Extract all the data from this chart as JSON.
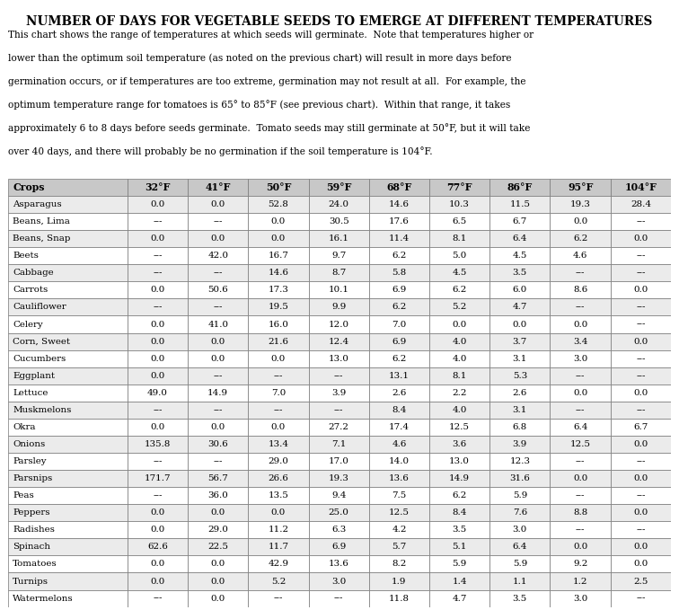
{
  "title": "Number of Days for Vegetable Seeds to Emerge at Different Temperatures",
  "subtitle_lines": [
    "This chart shows the range of temperatures at which seeds will germinate.  Note that temperatures higher or",
    "lower than the optimum soil temperature (as noted on the previous chart) will result in more days before",
    "germination occurs, or if temperatures are too extreme, germination may not result at all.  For example, the",
    "optimum temperature range for tomatoes is 65° to 85°F (see previous chart).  Within that range, it takes",
    "approximately 6 to 8 days before seeds germinate.  Tomato seeds may still germinate at 50°F, but it will take",
    "over 40 days, and there will probably be no germination if the soil temperature is 104°F."
  ],
  "columns": [
    "Crops",
    "32°F",
    "41°F",
    "50°F",
    "59°F",
    "68°F",
    "77°F",
    "86°F",
    "95°F",
    "104°F"
  ],
  "rows": [
    [
      "Asparagus",
      "0.0",
      "0.0",
      "52.8",
      "24.0",
      "14.6",
      "10.3",
      "11.5",
      "19.3",
      "28.4"
    ],
    [
      "Beans, Lima",
      "---",
      "---",
      "0.0",
      "30.5",
      "17.6",
      "6.5",
      "6.7",
      "0.0",
      "---"
    ],
    [
      "Beans, Snap",
      "0.0",
      "0.0",
      "0.0",
      "16.1",
      "11.4",
      "8.1",
      "6.4",
      "6.2",
      "0.0"
    ],
    [
      "Beets",
      "---",
      "42.0",
      "16.7",
      "9.7",
      "6.2",
      "5.0",
      "4.5",
      "4.6",
      "---"
    ],
    [
      "Cabbage",
      "---",
      "---",
      "14.6",
      "8.7",
      "5.8",
      "4.5",
      "3.5",
      "---",
      "---"
    ],
    [
      "Carrots",
      "0.0",
      "50.6",
      "17.3",
      "10.1",
      "6.9",
      "6.2",
      "6.0",
      "8.6",
      "0.0"
    ],
    [
      "Cauliflower",
      "---",
      "---",
      "19.5",
      "9.9",
      "6.2",
      "5.2",
      "4.7",
      "---",
      "---"
    ],
    [
      "Celery",
      "0.0",
      "41.0",
      "16.0",
      "12.0",
      "7.0",
      "0.0",
      "0.0",
      "0.0",
      "---"
    ],
    [
      "Corn, Sweet",
      "0.0",
      "0.0",
      "21.6",
      "12.4",
      "6.9",
      "4.0",
      "3.7",
      "3.4",
      "0.0"
    ],
    [
      "Cucumbers",
      "0.0",
      "0.0",
      "0.0",
      "13.0",
      "6.2",
      "4.0",
      "3.1",
      "3.0",
      "---"
    ],
    [
      "Eggplant",
      "0.0",
      "---",
      "---",
      "---",
      "13.1",
      "8.1",
      "5.3",
      "---",
      "---"
    ],
    [
      "Lettuce",
      "49.0",
      "14.9",
      "7.0",
      "3.9",
      "2.6",
      "2.2",
      "2.6",
      "0.0",
      "0.0"
    ],
    [
      "Muskmelons",
      "---",
      "---",
      "---",
      "---",
      "8.4",
      "4.0",
      "3.1",
      "---",
      "---"
    ],
    [
      "Okra",
      "0.0",
      "0.0",
      "0.0",
      "27.2",
      "17.4",
      "12.5",
      "6.8",
      "6.4",
      "6.7"
    ],
    [
      "Onions",
      "135.8",
      "30.6",
      "13.4",
      "7.1",
      "4.6",
      "3.6",
      "3.9",
      "12.5",
      "0.0"
    ],
    [
      "Parsley",
      "---",
      "---",
      "29.0",
      "17.0",
      "14.0",
      "13.0",
      "12.3",
      "---",
      "---"
    ],
    [
      "Parsnips",
      "171.7",
      "56.7",
      "26.6",
      "19.3",
      "13.6",
      "14.9",
      "31.6",
      "0.0",
      "0.0"
    ],
    [
      "Peas",
      "---",
      "36.0",
      "13.5",
      "9.4",
      "7.5",
      "6.2",
      "5.9",
      "---",
      "---"
    ],
    [
      "Peppers",
      "0.0",
      "0.0",
      "0.0",
      "25.0",
      "12.5",
      "8.4",
      "7.6",
      "8.8",
      "0.0"
    ],
    [
      "Radishes",
      "0.0",
      "29.0",
      "11.2",
      "6.3",
      "4.2",
      "3.5",
      "3.0",
      "---",
      "---"
    ],
    [
      "Spinach",
      "62.6",
      "22.5",
      "11.7",
      "6.9",
      "5.7",
      "5.1",
      "6.4",
      "0.0",
      "0.0"
    ],
    [
      "Tomatoes",
      "0.0",
      "0.0",
      "42.9",
      "13.6",
      "8.2",
      "5.9",
      "5.9",
      "9.2",
      "0.0"
    ],
    [
      "Turnips",
      "0.0",
      "0.0",
      "5.2",
      "3.0",
      "1.9",
      "1.4",
      "1.1",
      "1.2",
      "2.5"
    ],
    [
      "Watermelons",
      "---",
      "0.0",
      "---",
      "---",
      "11.8",
      "4.7",
      "3.5",
      "3.0",
      "---"
    ]
  ],
  "header_bg": "#c8c8c8",
  "odd_row_bg": "#ebebeb",
  "even_row_bg": "#ffffff",
  "border_color": "#777777",
  "text_color": "#000000",
  "title_color": "#000000",
  "fig_width": 7.56,
  "fig_height": 6.79,
  "dpi": 100
}
